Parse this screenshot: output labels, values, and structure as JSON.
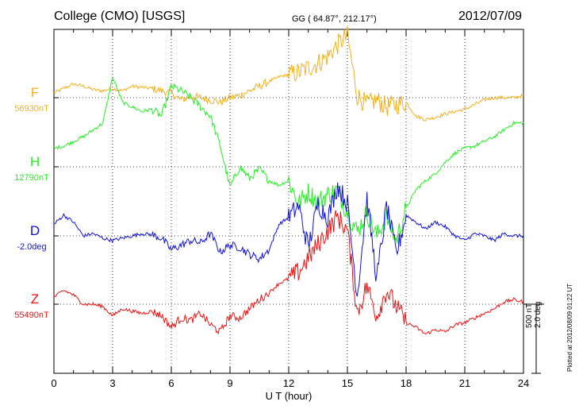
{
  "header": {
    "station": "College (CMO)  [USGS]",
    "coords": "GG ( 64.87°, 212.17°)",
    "date": "2012/07/09"
  },
  "side": {
    "scale": "500 nT\n2.0 deg",
    "scale_line1": "500 nT",
    "scale_line2": "2.0 deg",
    "plotted": "Plotted at 2012/08/09 01:22 UT"
  },
  "chart_data": {
    "type": "line",
    "xlabel": "U T (hour)",
    "xlim": [
      0,
      24
    ],
    "xticks": [
      "0",
      "3",
      "6",
      "9",
      "12",
      "15",
      "18",
      "21",
      "24"
    ],
    "scale_per_panel": "500 nT / 2.0 deg",
    "grid": true,
    "series": [
      {
        "name": "F",
        "baseline_label": "56930nT",
        "color": "#f2b01e",
        "x": [
          0,
          0.5,
          1,
          1.5,
          2,
          2.5,
          3,
          3.5,
          4,
          4.5,
          5,
          5.5,
          6,
          6.5,
          7,
          7.5,
          8,
          8.5,
          9,
          9.5,
          10,
          10.5,
          11,
          11.5,
          12,
          12.5,
          13,
          13.5,
          14,
          14.5,
          15,
          15.5,
          16,
          16.5,
          17,
          17.5,
          18,
          18.5,
          19,
          19.5,
          20,
          20.5,
          21,
          21.5,
          22,
          22.5,
          23,
          23.5,
          24
        ],
        "y": [
          0.2,
          0.4,
          0.6,
          0.5,
          0.35,
          0.3,
          0.4,
          0.3,
          0.5,
          0.45,
          0.4,
          0.3,
          0.2,
          -0.1,
          0.05,
          0,
          -0.1,
          -0.2,
          0,
          0.1,
          0.3,
          0.5,
          0.7,
          0.9,
          1.0,
          1.1,
          1.3,
          1.5,
          1.8,
          2.3,
          2.7,
          0.1,
          -0.3,
          -0.1,
          -0.4,
          -0.3,
          -0.2,
          -0.8,
          -0.95,
          -0.85,
          -0.7,
          -0.6,
          -0.5,
          -0.3,
          -0.1,
          0,
          0,
          0,
          0.1
        ]
      },
      {
        "name": "H",
        "baseline_label": "12790nT",
        "color": "#22ee22",
        "x": [
          0,
          0.5,
          1,
          1.5,
          2,
          2.5,
          3,
          3.5,
          4,
          4.5,
          5,
          5.5,
          6,
          6.5,
          7,
          7.5,
          8,
          8.5,
          9,
          9.5,
          10,
          10.5,
          11,
          11.5,
          12,
          12.5,
          13,
          13.5,
          14,
          14.5,
          15,
          15.5,
          16,
          16.5,
          17,
          17.5,
          18,
          18.5,
          19,
          19.5,
          20,
          20.5,
          21,
          21.5,
          22,
          22.5,
          23,
          23.5,
          24
        ],
        "y": [
          0.8,
          0.9,
          1.1,
          1.3,
          1.6,
          1.9,
          3.9,
          2.8,
          2.6,
          2.4,
          2.5,
          2.2,
          3.5,
          3.3,
          3.0,
          2.6,
          2.2,
          0.9,
          -0.9,
          0.0,
          -0.5,
          -0.1,
          -0.6,
          -0.8,
          -0.6,
          -1.6,
          -1.1,
          -1.5,
          -1.2,
          -1.0,
          -2.0,
          -2.8,
          -2.0,
          -3.0,
          -2.2,
          -3.2,
          -1.8,
          -1.0,
          -0.6,
          -0.3,
          0.2,
          0.6,
          0.8,
          0.9,
          1.1,
          1.3,
          1.6,
          1.9,
          1.9
        ]
      },
      {
        "name": "D",
        "baseline_label": "-2.0deg",
        "color": "#1111dd",
        "x": [
          0,
          0.5,
          1,
          1.5,
          2,
          2.5,
          3,
          3.5,
          4,
          4.5,
          5,
          5.5,
          6,
          6.5,
          7,
          7.5,
          8,
          8.5,
          9,
          9.5,
          10,
          10.5,
          11,
          11.5,
          12,
          12.5,
          13,
          13.5,
          14,
          14.5,
          15,
          15.5,
          16,
          16.5,
          17,
          17.5,
          18,
          18.5,
          19,
          19.5,
          20,
          20.5,
          21,
          21.5,
          22,
          22.5,
          23,
          23.5,
          24
        ],
        "y": [
          0.5,
          0.9,
          0.6,
          0.0,
          0.1,
          -0.1,
          -0.2,
          -0.1,
          0.0,
          0.1,
          0.05,
          -0.1,
          -0.6,
          -0.4,
          -0.2,
          -0.3,
          0.1,
          -0.7,
          -0.4,
          -0.5,
          -0.8,
          -1.0,
          -0.6,
          0.5,
          0.8,
          1.3,
          -0.5,
          1.4,
          0.8,
          2.2,
          1.4,
          -2.6,
          1.6,
          -1.9,
          1.3,
          -0.8,
          0.9,
          0.6,
          0.3,
          0.6,
          0.4,
          0.0,
          -0.2,
          0.1,
          0.0,
          -0.2,
          0.1,
          0.0,
          0.0
        ]
      },
      {
        "name": "Z",
        "baseline_label": "55490nT",
        "color": "#ee1111",
        "x": [
          0,
          0.5,
          1,
          1.5,
          2,
          2.5,
          3,
          3.5,
          4,
          4.5,
          5,
          5.5,
          6,
          6.5,
          7,
          7.5,
          8,
          8.5,
          9,
          9.5,
          10,
          10.5,
          11,
          11.5,
          12,
          12.5,
          13,
          13.5,
          14,
          14.5,
          15,
          15.5,
          16,
          16.5,
          17,
          17.5,
          18,
          18.5,
          19,
          19.5,
          20,
          20.5,
          21,
          21.5,
          22,
          22.5,
          23,
          23.5,
          24
        ],
        "y": [
          0.3,
          0.6,
          0.4,
          0.0,
          0.0,
          -0.1,
          -0.5,
          -0.2,
          -0.3,
          -0.4,
          -0.3,
          -0.5,
          -1.0,
          -0.6,
          -0.7,
          -0.4,
          -0.9,
          -1.2,
          -0.5,
          -0.6,
          -0.2,
          0.2,
          0.5,
          0.9,
          1.1,
          1.4,
          2.0,
          2.6,
          3.2,
          3.8,
          3.2,
          -0.4,
          0.8,
          -0.5,
          0.6,
          -0.1,
          -0.8,
          -1.0,
          -1.3,
          -1.1,
          -1.2,
          -0.9,
          -0.8,
          -0.6,
          -0.4,
          -0.2,
          0.1,
          0.2,
          0.1
        ]
      }
    ]
  }
}
